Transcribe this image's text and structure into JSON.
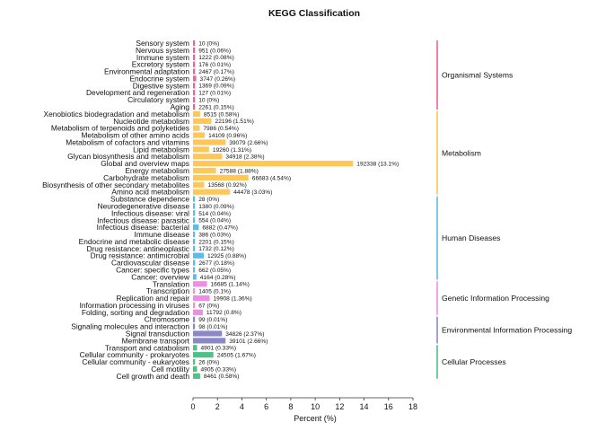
{
  "chart_data": {
    "type": "bar",
    "orientation": "horizontal",
    "title": "KEGG Classification",
    "xlabel": "Percent (%)",
    "xlim": [
      0,
      18
    ],
    "xticks": [
      0,
      2,
      4,
      6,
      8,
      10,
      12,
      14,
      16,
      18
    ],
    "grid": false,
    "groups": [
      {
        "name": "Organismal Systems",
        "color": "#f0609a",
        "categories": [
          {
            "name": "Sensory system",
            "percent": 0,
            "label": "10 (0%)"
          },
          {
            "name": "Nervous system",
            "percent": 0.06,
            "label": "951 (0.06%)"
          },
          {
            "name": "Immune system",
            "percent": 0.08,
            "label": "1222 (0.08%)"
          },
          {
            "name": "Excretory system",
            "percent": 0.01,
            "label": "176 (0.01%)"
          },
          {
            "name": "Environmental adaptation",
            "percent": 0.17,
            "label": "2467 (0.17%)"
          },
          {
            "name": "Endocrine system",
            "percent": 0.26,
            "label": "3747 (0.26%)"
          },
          {
            "name": "Digestive system",
            "percent": 0.09,
            "label": "1369 (0.09%)"
          },
          {
            "name": "Development and regeneration",
            "percent": 0.01,
            "label": "127 (0.01%)"
          },
          {
            "name": "Circulatory system",
            "percent": 0,
            "label": "10 (0%)"
          },
          {
            "name": "Aging",
            "percent": 0.15,
            "label": "2261 (0.15%)"
          }
        ]
      },
      {
        "name": "Metabolism",
        "color": "#ffc658",
        "categories": [
          {
            "name": "Xenobiotics biodegradation and metabolism",
            "percent": 0.58,
            "label": "8515 (0.58%)"
          },
          {
            "name": "Nucleotide metabolism",
            "percent": 1.51,
            "label": "22196 (1.51%)"
          },
          {
            "name": "Metabolism of terpenoids and polyketides",
            "percent": 0.54,
            "label": "7986 (0.54%)"
          },
          {
            "name": "Metabolism of other amino acids",
            "percent": 0.96,
            "label": "14109 (0.96%)"
          },
          {
            "name": "Metabolism of cofactors and vitamins",
            "percent": 2.66,
            "label": "39079 (2.66%)"
          },
          {
            "name": "Lipid metabolism",
            "percent": 1.31,
            "label": "19260 (1.31%)"
          },
          {
            "name": "Glycan biosynthesis and metabolism",
            "percent": 2.38,
            "label": "34918 (2.38%)"
          },
          {
            "name": "Global and overview maps",
            "percent": 13.1,
            "label": "192338 (13.1%)"
          },
          {
            "name": "Energy metabolism",
            "percent": 1.88,
            "label": "27588 (1.88%)"
          },
          {
            "name": "Carbohydrate metabolism",
            "percent": 4.54,
            "label": "66683 (4.54%)"
          },
          {
            "name": "Biosynthesis of other secondary metabolites",
            "percent": 0.92,
            "label": "13568 (0.92%)"
          },
          {
            "name": "Amino acid metabolism",
            "percent": 3.03,
            "label": "44478 (3.03%)"
          }
        ]
      },
      {
        "name": "Human Diseases",
        "color": "#5bbcec",
        "categories": [
          {
            "name": "Substance dependence",
            "percent": 0,
            "label": "28 (0%)"
          },
          {
            "name": "Neurodegenerative disease",
            "percent": 0.09,
            "label": "1380 (0.09%)"
          },
          {
            "name": "Infectious disease: viral",
            "percent": 0.04,
            "label": "514 (0.04%)"
          },
          {
            "name": "Infectious disease: parasitic",
            "percent": 0.04,
            "label": "554 (0.04%)"
          },
          {
            "name": "Infectious disease: bacterial",
            "percent": 0.47,
            "label": "6882 (0.47%)"
          },
          {
            "name": "Immune disease",
            "percent": 0.03,
            "label": "386 (0.03%)"
          },
          {
            "name": "Endocrine and metabolic disease",
            "percent": 0.15,
            "label": "2201 (0.15%)"
          },
          {
            "name": "Drug resistance: antineoplastic",
            "percent": 0.12,
            "label": "1732 (0.12%)"
          },
          {
            "name": "Drug resistance: antimicrobial",
            "percent": 0.88,
            "label": "12925 (0.88%)"
          },
          {
            "name": "Cardiovascular disease",
            "percent": 0.18,
            "label": "2677 (0.18%)"
          },
          {
            "name": "Cancer: specific types",
            "percent": 0.05,
            "label": "662 (0.05%)"
          },
          {
            "name": "Cancer: overview",
            "percent": 0.28,
            "label": "4164 (0.28%)"
          }
        ]
      },
      {
        "name": "Genetic Information Processing",
        "color": "#ee8ce6",
        "categories": [
          {
            "name": "Translation",
            "percent": 1.14,
            "label": "16685 (1.14%)"
          },
          {
            "name": "Transcription",
            "percent": 0.1,
            "label": "1405 (0.1%)"
          },
          {
            "name": "Replication and repair",
            "percent": 1.36,
            "label": "19908 (1.36%)"
          },
          {
            "name": "Information processing in viruses",
            "percent": 0,
            "label": "67 (0%)"
          },
          {
            "name": "Folding, sorting and degradation",
            "percent": 0.8,
            "label": "11792 (0.8%)"
          }
        ]
      },
      {
        "name": "Environmental Information Processing",
        "color": "#8b88c8",
        "categories": [
          {
            "name": "Chromosome",
            "percent": 0.01,
            "label": "99 (0.01%)"
          },
          {
            "name": "Signaling molecules and interaction",
            "percent": 0.01,
            "label": "98 (0.01%)"
          },
          {
            "name": "Signal transduction",
            "percent": 2.37,
            "label": "34826 (2.37%)"
          },
          {
            "name": "Membrane transport",
            "percent": 2.66,
            "label": "39101 (2.66%)"
          }
        ]
      },
      {
        "name": "Cellular Processes",
        "color": "#4fc184",
        "categories": [
          {
            "name": "Transport and catabolism",
            "percent": 0.33,
            "label": "4901 (0.33%)"
          },
          {
            "name": "Cellular community - prokaryotes",
            "percent": 1.67,
            "label": "24505 (1.67%)"
          },
          {
            "name": "Cellular community - eukaryotes",
            "percent": 0,
            "label": "26 (0%)"
          },
          {
            "name": "Cell motility",
            "percent": 0.33,
            "label": "4905 (0.33%)"
          },
          {
            "name": "Cell growth and death",
            "percent": 0.58,
            "label": "8461 (0.58%)"
          }
        ]
      }
    ]
  }
}
